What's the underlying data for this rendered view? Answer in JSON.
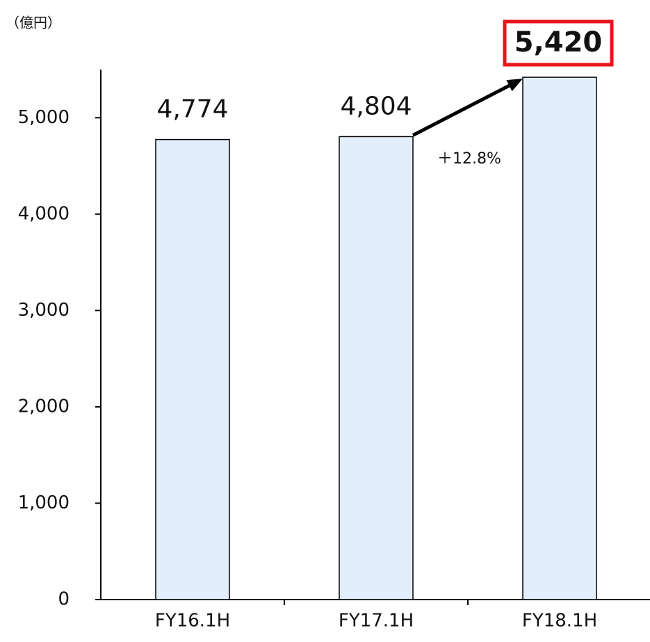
{
  "chart_data": {
    "type": "bar",
    "unit_label": "（億円）",
    "categories": [
      "FY16.1H",
      "FY17.1H",
      "FY18.1H"
    ],
    "values": [
      4774,
      4804,
      5420
    ],
    "value_labels": [
      "4,774",
      "4,804",
      "5,420"
    ],
    "color": "#e3eefc",
    "highlight_color": "#e8141c",
    "annotation": "＋12.8%",
    "ylim": [
      0,
      5500
    ],
    "yticks": [
      0,
      {
        "value": 1000,
        "label": "1,000"
      },
      {
        "value": 2000,
        "label": "2,000"
      },
      {
        "value": 3000,
        "label": "3,000"
      },
      {
        "value": 4000,
        "label": "4,000"
      },
      {
        "value": 5000,
        "label": "5,000"
      }
    ],
    "grid": false
  }
}
